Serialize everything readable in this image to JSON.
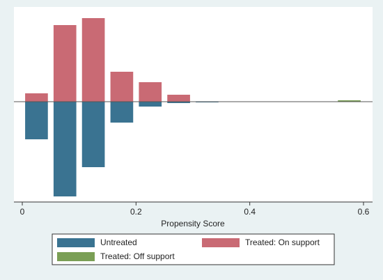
{
  "chart_data": {
    "type": "mirror-histogram",
    "xlabel": "Propensity Score",
    "bins": [
      0,
      0.05,
      0.1,
      0.15,
      0.2,
      0.25,
      0.3,
      0.35,
      0.4,
      0.45,
      0.5,
      0.55,
      0.6
    ],
    "series": [
      {
        "name": "Untreated",
        "color": "#3a7391",
        "values": [
          -54,
          -136,
          -94,
          -30,
          -7,
          -2,
          -1,
          0,
          0,
          0,
          0,
          0
        ]
      },
      {
        "name": "Treated: On support",
        "color": "#c96a74",
        "values": [
          12,
          110,
          120,
          43,
          28,
          10,
          0,
          0,
          0,
          0,
          0,
          0
        ]
      },
      {
        "name": "Treated: Off support",
        "color": "#7a9f55",
        "values": [
          0,
          0,
          0,
          0,
          0,
          0,
          0,
          0,
          0,
          0,
          0,
          2
        ]
      }
    ],
    "xlim": [
      0,
      0.6
    ],
    "xticks": [
      0,
      0.2,
      0.4,
      0.6
    ],
    "ylim": [
      -144,
      134
    ]
  }
}
